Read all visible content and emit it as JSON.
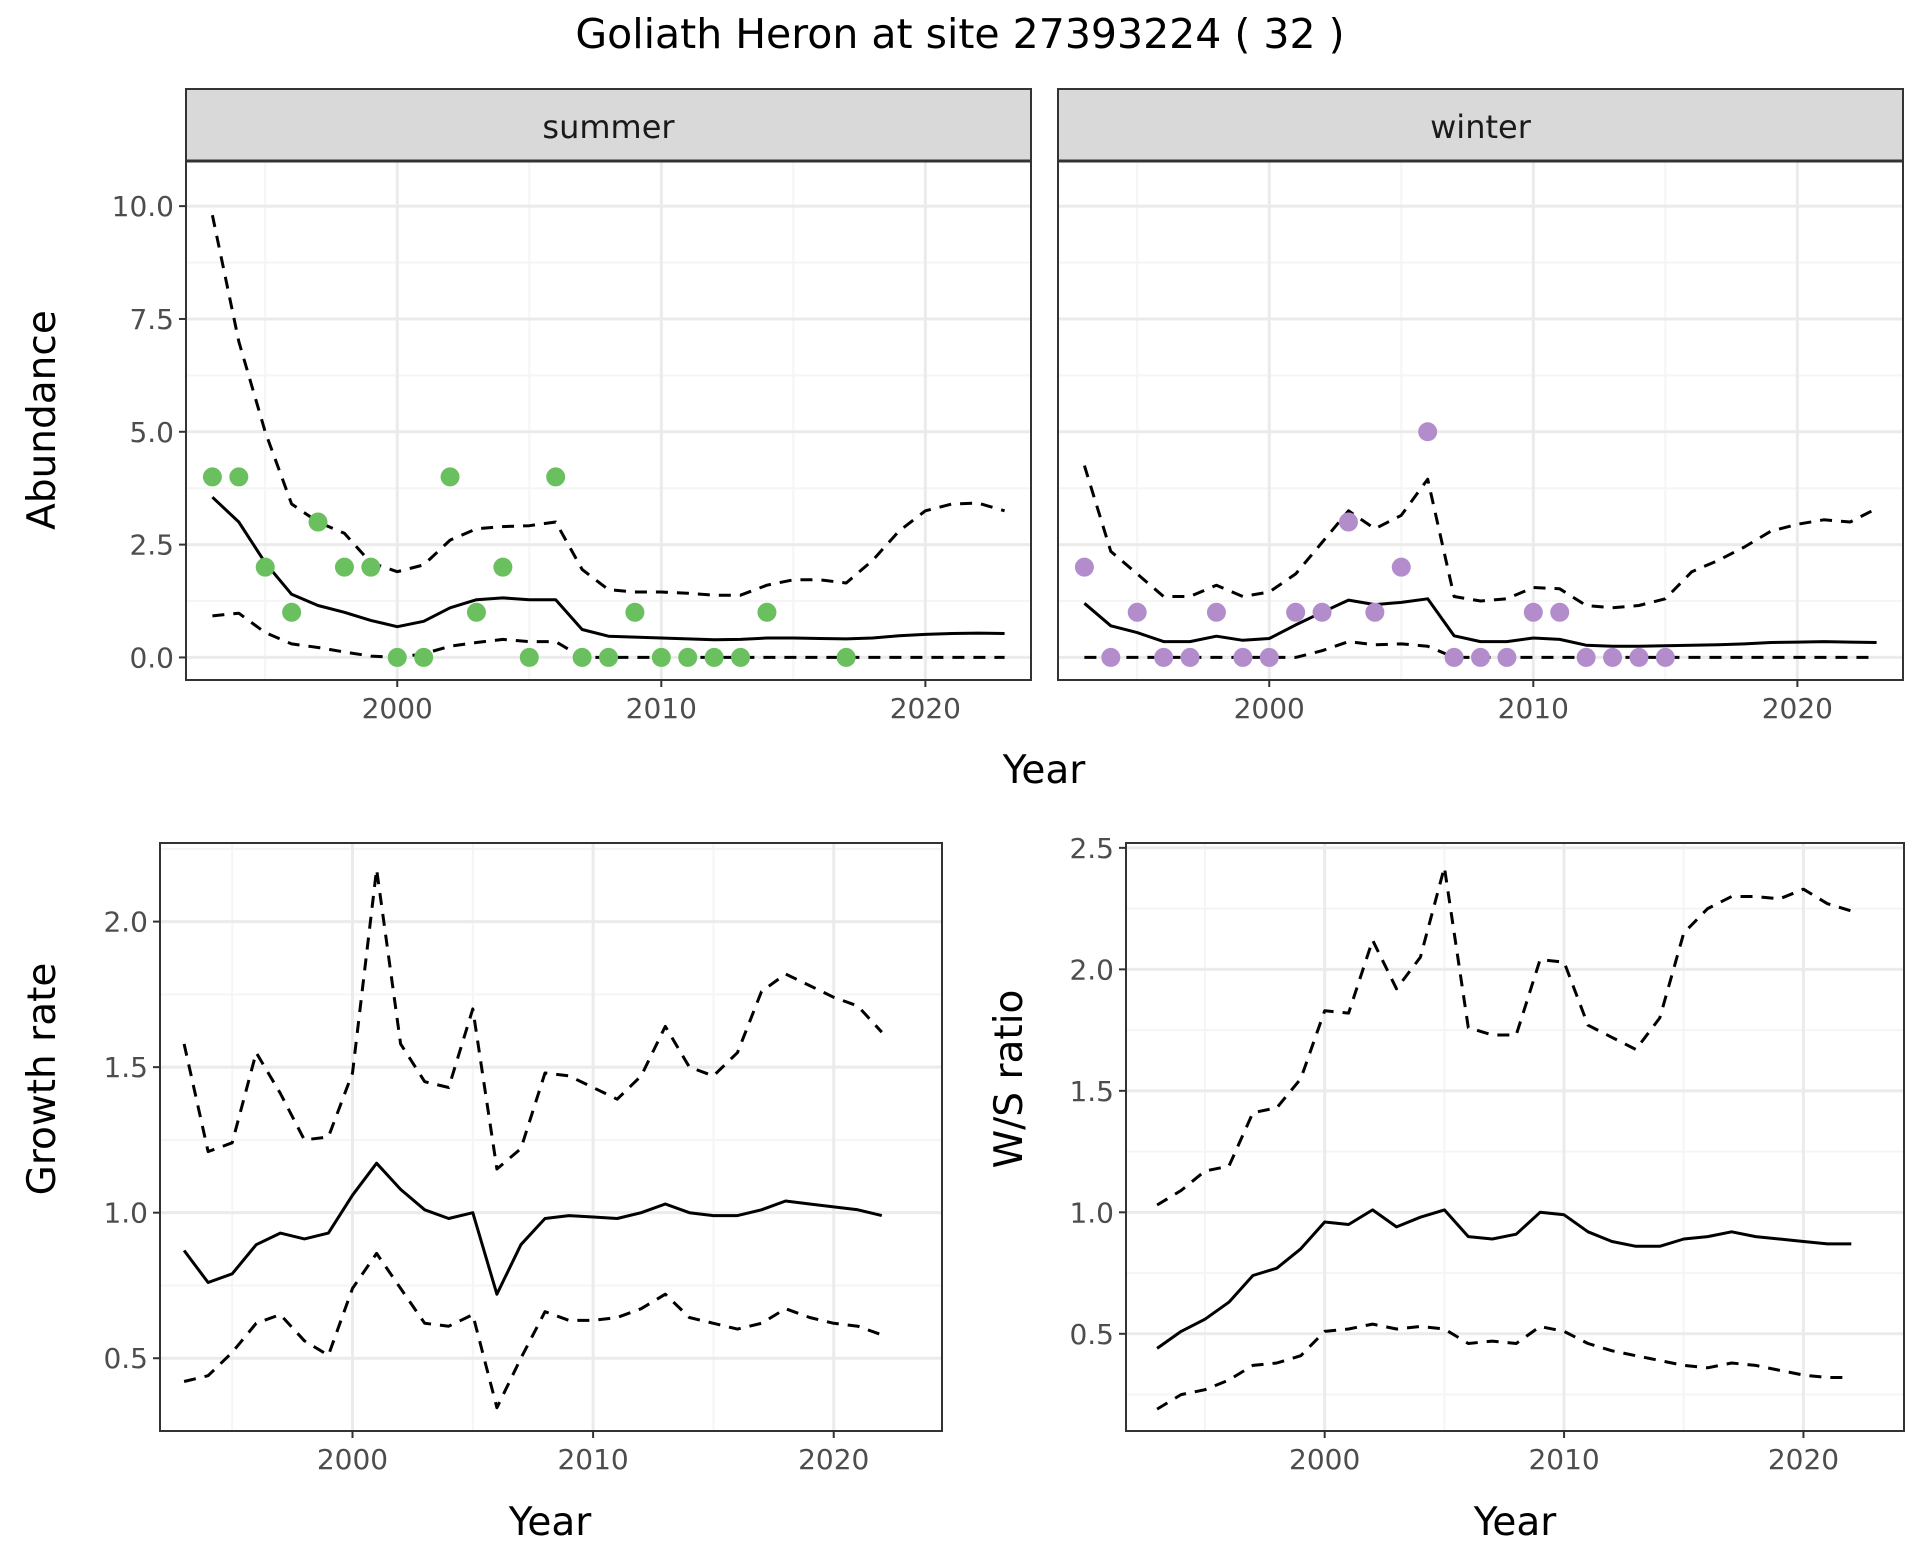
{
  "title": "Goliath Heron at site 27393224 ( 32 )",
  "colors": {
    "summer_points": "#6abf5e",
    "winter_points": "#b38ccc",
    "lines": "#000000",
    "grid_major": "#ebebeb",
    "grid_minor": "#f5f5f5",
    "strip_fill": "#d9d9d9"
  },
  "chart_data": [
    {
      "type": "line",
      "panel": "summer",
      "strip_label": "summer",
      "xlabel": "Year",
      "ylabel": "Abundance",
      "xlim": [
        1992,
        2024
      ],
      "ylim": [
        -0.5,
        11.0
      ],
      "x_ticks": [
        2000,
        2010,
        2020
      ],
      "x_tick_labels": [
        "2000",
        "2010",
        "2020"
      ],
      "y_ticks": [
        0,
        2.5,
        5,
        7.5,
        10
      ],
      "y_tick_labels": [
        "0.0",
        "2.5",
        "5.0",
        "7.5",
        "10.0"
      ],
      "grid": true,
      "points": {
        "x": [
          1993,
          1994,
          1995,
          1996,
          1997,
          1998,
          1999,
          2000,
          2001,
          2002,
          2003,
          2004,
          2005,
          2006,
          2007,
          2008,
          2009,
          2010,
          2011,
          2012,
          2013,
          2014,
          2017
        ],
        "y": [
          4,
          4,
          2,
          1,
          3,
          2,
          2,
          0,
          0,
          4,
          1,
          2,
          0,
          4,
          0,
          0,
          1,
          0,
          0,
          0,
          0,
          1,
          0
        ]
      },
      "series": [
        {
          "style": "solid",
          "x": [
            1993,
            1994,
            1995,
            1996,
            1997,
            1998,
            1999,
            2000,
            2001,
            2002,
            2003,
            2004,
            2005,
            2006,
            2007,
            2008,
            2009,
            2010,
            2011,
            2012,
            2013,
            2014,
            2015,
            2016,
            2017,
            2018,
            2019,
            2020,
            2021,
            2022,
            2023
          ],
          "y": [
            3.55,
            3.0,
            2.1,
            1.4,
            1.15,
            1.0,
            0.82,
            0.68,
            0.8,
            1.1,
            1.28,
            1.32,
            1.28,
            1.28,
            0.62,
            0.47,
            0.45,
            0.43,
            0.41,
            0.39,
            0.4,
            0.43,
            0.43,
            0.42,
            0.41,
            0.43,
            0.48,
            0.51,
            0.53,
            0.54,
            0.53
          ]
        },
        {
          "style": "dashed",
          "x": [
            1993,
            1994,
            1995,
            1996,
            1997,
            1998,
            1999,
            2000,
            2001,
            2002,
            2003,
            2004,
            2005,
            2006,
            2007,
            2008,
            2009,
            2010,
            2011,
            2012,
            2013,
            2014,
            2015,
            2016,
            2017,
            2018,
            2019,
            2020,
            2021,
            2022,
            2023
          ],
          "y": [
            9.8,
            7.0,
            5.0,
            3.4,
            3.0,
            2.75,
            2.1,
            1.9,
            2.05,
            2.6,
            2.85,
            2.9,
            2.92,
            3.0,
            1.95,
            1.5,
            1.45,
            1.45,
            1.42,
            1.38,
            1.38,
            1.6,
            1.72,
            1.72,
            1.65,
            2.15,
            2.8,
            3.25,
            3.4,
            3.42,
            3.25
          ]
        },
        {
          "style": "dashed",
          "x": [
            1993,
            1994,
            1995,
            1996,
            1997,
            1998,
            1999,
            2000,
            2001,
            2002,
            2003,
            2004,
            2005,
            2006,
            2007,
            2008,
            2009,
            2010,
            2011,
            2012,
            2013,
            2014,
            2015,
            2016,
            2017,
            2018,
            2019,
            2020,
            2021,
            2022,
            2023
          ],
          "y": [
            0.92,
            0.98,
            0.55,
            0.3,
            0.22,
            0.12,
            0.03,
            0.0,
            0.08,
            0.25,
            0.33,
            0.4,
            0.35,
            0.35,
            0.0,
            0.0,
            0.0,
            0.0,
            0.0,
            0.0,
            0.0,
            0.0,
            0.0,
            0.0,
            0.0,
            0.0,
            0.0,
            0.0,
            0.0,
            0.0,
            0.0
          ]
        }
      ]
    },
    {
      "type": "line",
      "panel": "winter",
      "strip_label": "winter",
      "xlabel": "Year",
      "ylabel": "Abundance",
      "xlim": [
        1992,
        2024
      ],
      "ylim": [
        -0.5,
        11.0
      ],
      "x_ticks": [
        2000,
        2010,
        2020
      ],
      "x_tick_labels": [
        "2000",
        "2010",
        "2020"
      ],
      "y_ticks": [
        0,
        2.5,
        5,
        7.5,
        10
      ],
      "grid": true,
      "points": {
        "x": [
          1993,
          1994,
          1995,
          1996,
          1997,
          1998,
          1999,
          2000,
          2001,
          2002,
          2003,
          2004,
          2005,
          2006,
          2007,
          2008,
          2009,
          2010,
          2011,
          2012,
          2013,
          2014,
          2015
        ],
        "y": [
          2,
          0,
          1,
          0,
          0,
          1,
          0,
          0,
          1,
          1,
          3,
          1,
          2,
          5,
          0,
          0,
          0,
          1,
          1,
          0,
          0,
          0,
          0
        ]
      },
      "series": [
        {
          "style": "solid",
          "x": [
            1993,
            1994,
            1995,
            1996,
            1997,
            1998,
            1999,
            2000,
            2001,
            2002,
            2003,
            2004,
            2005,
            2006,
            2007,
            2008,
            2009,
            2010,
            2011,
            2012,
            2013,
            2014,
            2015,
            2016,
            2017,
            2018,
            2019,
            2020,
            2021,
            2022,
            2023
          ],
          "y": [
            1.2,
            0.7,
            0.55,
            0.35,
            0.35,
            0.47,
            0.38,
            0.42,
            0.72,
            1.0,
            1.27,
            1.17,
            1.22,
            1.3,
            0.48,
            0.35,
            0.35,
            0.43,
            0.4,
            0.27,
            0.25,
            0.25,
            0.26,
            0.27,
            0.28,
            0.3,
            0.33,
            0.34,
            0.35,
            0.34,
            0.33
          ]
        },
        {
          "style": "dashed",
          "x": [
            1993,
            1994,
            1995,
            1996,
            1997,
            1998,
            1999,
            2000,
            2001,
            2002,
            2003,
            2004,
            2005,
            2006,
            2007,
            2008,
            2009,
            2010,
            2011,
            2012,
            2013,
            2014,
            2015,
            2016,
            2017,
            2018,
            2019,
            2020,
            2021,
            2022,
            2023
          ],
          "y": [
            4.25,
            2.35,
            1.85,
            1.35,
            1.35,
            1.6,
            1.35,
            1.45,
            1.85,
            2.55,
            3.25,
            2.85,
            3.15,
            3.95,
            1.35,
            1.25,
            1.3,
            1.55,
            1.52,
            1.15,
            1.1,
            1.15,
            1.3,
            1.9,
            2.15,
            2.45,
            2.8,
            2.95,
            3.05,
            3.0,
            3.3
          ]
        },
        {
          "style": "dashed",
          "x": [
            1993,
            1994,
            1995,
            1996,
            1997,
            1998,
            1999,
            2000,
            2001,
            2002,
            2003,
            2004,
            2005,
            2006,
            2007,
            2008,
            2009,
            2010,
            2011,
            2012,
            2013,
            2014,
            2015,
            2016,
            2017,
            2018,
            2019,
            2020,
            2021,
            2022,
            2023
          ],
          "y": [
            0.0,
            0.0,
            0.0,
            0.0,
            0.0,
            0.0,
            0.0,
            0.0,
            0.0,
            0.15,
            0.35,
            0.28,
            0.3,
            0.25,
            0.0,
            0.0,
            0.0,
            0.0,
            0.0,
            0.0,
            0.0,
            0.0,
            0.0,
            0.0,
            0.0,
            0.0,
            0.0,
            0.0,
            0.0,
            0.0,
            0.0
          ]
        }
      ]
    },
    {
      "type": "line",
      "panel": "growth",
      "xlabel": "Year",
      "ylabel": "Growth rate",
      "xlim": [
        1992,
        2024.5
      ],
      "ylim": [
        0.25,
        2.27
      ],
      "x_ticks": [
        2000,
        2010,
        2020
      ],
      "x_tick_labels": [
        "2000",
        "2010",
        "2020"
      ],
      "y_ticks": [
        0.5,
        1.0,
        1.5,
        2.0
      ],
      "y_tick_labels": [
        "0.5",
        "1.0",
        "1.5",
        "2.0"
      ],
      "grid": true,
      "series": [
        {
          "style": "solid",
          "x": [
            1993,
            1994,
            1995,
            1996,
            1997,
            1998,
            1999,
            2000,
            2001,
            2002,
            2003,
            2004,
            2005,
            2006,
            2007,
            2008,
            2009,
            2010,
            2011,
            2012,
            2013,
            2014,
            2015,
            2016,
            2017,
            2018,
            2019,
            2020,
            2021,
            2022
          ],
          "y": [
            0.87,
            0.76,
            0.79,
            0.89,
            0.93,
            0.91,
            0.93,
            1.06,
            1.17,
            1.08,
            1.01,
            0.98,
            1.0,
            0.72,
            0.89,
            0.98,
            0.99,
            0.985,
            0.98,
            1.0,
            1.03,
            1.0,
            0.99,
            0.99,
            1.01,
            1.04,
            1.03,
            1.02,
            1.01,
            0.99
          ]
        },
        {
          "style": "dashed",
          "x": [
            1993,
            1994,
            1995,
            1996,
            1997,
            1998,
            1999,
            2000,
            2001,
            2002,
            2003,
            2004,
            2005,
            2006,
            2007,
            2008,
            2009,
            2010,
            2011,
            2012,
            2013,
            2014,
            2015,
            2016,
            2017,
            2018,
            2019,
            2020,
            2021,
            2022
          ],
          "y": [
            1.58,
            1.21,
            1.24,
            1.55,
            1.41,
            1.25,
            1.26,
            1.48,
            2.18,
            1.58,
            1.45,
            1.43,
            1.7,
            1.15,
            1.22,
            1.48,
            1.47,
            1.43,
            1.39,
            1.47,
            1.64,
            1.5,
            1.47,
            1.55,
            1.76,
            1.82,
            1.78,
            1.74,
            1.71,
            1.62
          ]
        },
        {
          "style": "dashed",
          "x": [
            1993,
            1994,
            1995,
            1996,
            1997,
            1998,
            1999,
            2000,
            2001,
            2002,
            2003,
            2004,
            2005,
            2006,
            2007,
            2008,
            2009,
            2010,
            2011,
            2012,
            2013,
            2014,
            2015,
            2016,
            2017,
            2018,
            2019,
            2020,
            2021,
            2022
          ],
          "y": [
            0.42,
            0.44,
            0.52,
            0.62,
            0.65,
            0.56,
            0.51,
            0.74,
            0.86,
            0.74,
            0.62,
            0.61,
            0.65,
            0.33,
            0.5,
            0.66,
            0.63,
            0.63,
            0.64,
            0.67,
            0.72,
            0.64,
            0.62,
            0.6,
            0.62,
            0.67,
            0.64,
            0.62,
            0.61,
            0.58
          ]
        }
      ]
    },
    {
      "type": "line",
      "panel": "ws_ratio",
      "xlabel": "Year",
      "ylabel": "W/S ratio",
      "xlim": [
        1991.7,
        2024.2
      ],
      "ylim": [
        0.1,
        2.52
      ],
      "x_ticks": [
        2000,
        2010,
        2020
      ],
      "x_tick_labels": [
        "2000",
        "2010",
        "2020"
      ],
      "y_ticks": [
        0.5,
        1.0,
        1.5,
        2.0,
        2.5
      ],
      "y_tick_labels": [
        "0.5",
        "1.0",
        "1.5",
        "2.0",
        "2.5"
      ],
      "grid": true,
      "series": [
        {
          "style": "solid",
          "x": [
            1993,
            1994,
            1995,
            1996,
            1997,
            1998,
            1999,
            2000,
            2001,
            2002,
            2003,
            2004,
            2005,
            2006,
            2007,
            2008,
            2009,
            2010,
            2011,
            2012,
            2013,
            2014,
            2015,
            2016,
            2017,
            2018,
            2019,
            2020,
            2021,
            2022
          ],
          "y": [
            0.44,
            0.51,
            0.56,
            0.63,
            0.74,
            0.77,
            0.85,
            0.96,
            0.95,
            1.01,
            0.94,
            0.98,
            1.01,
            0.9,
            0.89,
            0.91,
            1.0,
            0.99,
            0.92,
            0.88,
            0.86,
            0.86,
            0.89,
            0.9,
            0.92,
            0.9,
            0.89,
            0.88,
            0.87,
            0.87
          ]
        },
        {
          "style": "dashed",
          "x": [
            1993,
            1994,
            1995,
            1996,
            1997,
            1998,
            1999,
            2000,
            2001,
            2002,
            2003,
            2004,
            2005,
            2006,
            2007,
            2008,
            2009,
            2010,
            2011,
            2012,
            2013,
            2014,
            2015,
            2016,
            2017,
            2018,
            2019,
            2020,
            2021,
            2022
          ],
          "y": [
            1.03,
            1.09,
            1.17,
            1.19,
            1.41,
            1.43,
            1.55,
            1.83,
            1.82,
            2.12,
            1.92,
            2.05,
            2.42,
            1.76,
            1.73,
            1.73,
            2.04,
            2.03,
            1.77,
            1.72,
            1.67,
            1.8,
            2.15,
            2.25,
            2.3,
            2.3,
            2.29,
            2.33,
            2.27,
            2.24
          ]
        },
        {
          "style": "dashed",
          "x": [
            1993,
            1994,
            1995,
            1996,
            1997,
            1998,
            1999,
            2000,
            2001,
            2002,
            2003,
            2004,
            2005,
            2006,
            2007,
            2008,
            2009,
            2010,
            2011,
            2012,
            2013,
            2014,
            2015,
            2016,
            2017,
            2018,
            2019,
            2020,
            2021,
            2022
          ],
          "y": [
            0.19,
            0.25,
            0.27,
            0.31,
            0.37,
            0.38,
            0.41,
            0.51,
            0.52,
            0.54,
            0.52,
            0.53,
            0.52,
            0.46,
            0.47,
            0.46,
            0.53,
            0.51,
            0.46,
            0.43,
            0.41,
            0.39,
            0.37,
            0.36,
            0.38,
            0.37,
            0.35,
            0.33,
            0.32,
            0.32
          ]
        }
      ]
    }
  ]
}
